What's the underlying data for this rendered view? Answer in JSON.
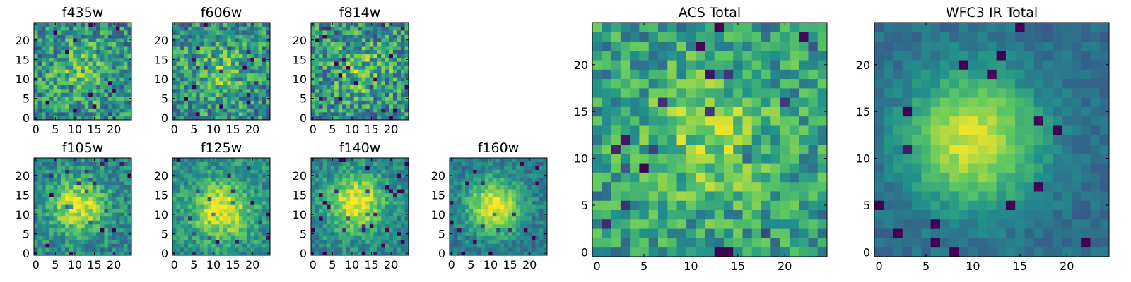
{
  "figure": {
    "background": "#ffffff"
  },
  "colormap": {
    "name": "viridis",
    "stops": [
      "#440154",
      "#3b528b",
      "#21918c",
      "#5ec962",
      "#fde725"
    ]
  },
  "chart_data": [
    {
      "type": "heatmap",
      "title": "f435w",
      "grid_size": 25,
      "xlim": [
        0,
        24
      ],
      "ylim": [
        0,
        24
      ],
      "xticks": [
        0,
        5,
        10,
        15,
        20
      ],
      "yticks": [
        0,
        5,
        10,
        15,
        20
      ],
      "seed": 11,
      "peak": [
        12,
        12
      ],
      "peak_strength": 0.2,
      "noise": 0.55,
      "base": 0.5
    },
    {
      "type": "heatmap",
      "title": "f606w",
      "grid_size": 25,
      "xlim": [
        0,
        24
      ],
      "ylim": [
        0,
        24
      ],
      "xticks": [
        0,
        5,
        10,
        15,
        20
      ],
      "yticks": [
        0,
        5,
        10,
        15,
        20
      ],
      "seed": 23,
      "peak": [
        11,
        12
      ],
      "peak_strength": 0.22,
      "noise": 0.55,
      "base": 0.5
    },
    {
      "type": "heatmap",
      "title": "f814w",
      "grid_size": 25,
      "xlim": [
        0,
        24
      ],
      "ylim": [
        0,
        24
      ],
      "xticks": [
        0,
        5,
        10,
        15,
        20
      ],
      "yticks": [
        0,
        5,
        10,
        15,
        20
      ],
      "seed": 37,
      "peak": [
        12,
        12
      ],
      "peak_strength": 0.2,
      "noise": 0.6,
      "base": 0.5
    },
    {
      "type": "heatmap",
      "title": "f105w",
      "grid_size": 25,
      "xlim": [
        0,
        24
      ],
      "ylim": [
        0,
        24
      ],
      "xticks": [
        0,
        5,
        10,
        15,
        20
      ],
      "yticks": [
        0,
        5,
        10,
        15,
        20
      ],
      "seed": 41,
      "peak": [
        11,
        12
      ],
      "peak_strength": 0.5,
      "noise": 0.35,
      "base": 0.45
    },
    {
      "type": "heatmap",
      "title": "f125w",
      "grid_size": 25,
      "xlim": [
        0,
        24
      ],
      "ylim": [
        0,
        24
      ],
      "xticks": [
        0,
        5,
        10,
        15,
        20
      ],
      "yticks": [
        0,
        5,
        10,
        15,
        20
      ],
      "seed": 53,
      "peak": [
        12,
        11
      ],
      "peak_strength": 0.5,
      "noise": 0.32,
      "base": 0.5
    },
    {
      "type": "heatmap",
      "title": "f140w",
      "grid_size": 25,
      "xlim": [
        0,
        24
      ],
      "ylim": [
        0,
        24
      ],
      "xticks": [
        0,
        5,
        10,
        15,
        20
      ],
      "yticks": [
        0,
        5,
        10,
        15,
        20
      ],
      "seed": 67,
      "peak": [
        11,
        13
      ],
      "peak_strength": 0.55,
      "noise": 0.3,
      "base": 0.45
    },
    {
      "type": "heatmap",
      "title": "f160w",
      "grid_size": 25,
      "xlim": [
        0,
        24
      ],
      "ylim": [
        0,
        24
      ],
      "xticks": [
        0,
        5,
        10,
        15,
        20
      ],
      "yticks": [
        0,
        5,
        10,
        15,
        20
      ],
      "seed": 79,
      "peak": [
        11,
        12
      ],
      "peak_strength": 0.6,
      "noise": 0.25,
      "base": 0.4
    },
    {
      "type": "heatmap",
      "title": "ACS Total",
      "grid_size": 25,
      "xlim": [
        0,
        24
      ],
      "ylim": [
        0,
        24
      ],
      "xticks": [
        0,
        5,
        10,
        15,
        20
      ],
      "yticks": [
        0,
        5,
        10,
        15,
        20
      ],
      "seed": 97,
      "peak": [
        12,
        12
      ],
      "peak_strength": 0.25,
      "noise": 0.45,
      "base": 0.55
    },
    {
      "type": "heatmap",
      "title": "WFC3 IR Total",
      "grid_size": 25,
      "xlim": [
        0,
        24
      ],
      "ylim": [
        0,
        24
      ],
      "xticks": [
        0,
        5,
        10,
        15,
        20
      ],
      "yticks": [
        0,
        5,
        10,
        15,
        20
      ],
      "seed": 113,
      "peak": [
        10,
        12
      ],
      "peak_strength": 0.6,
      "noise": 0.15,
      "base": 0.35
    }
  ]
}
